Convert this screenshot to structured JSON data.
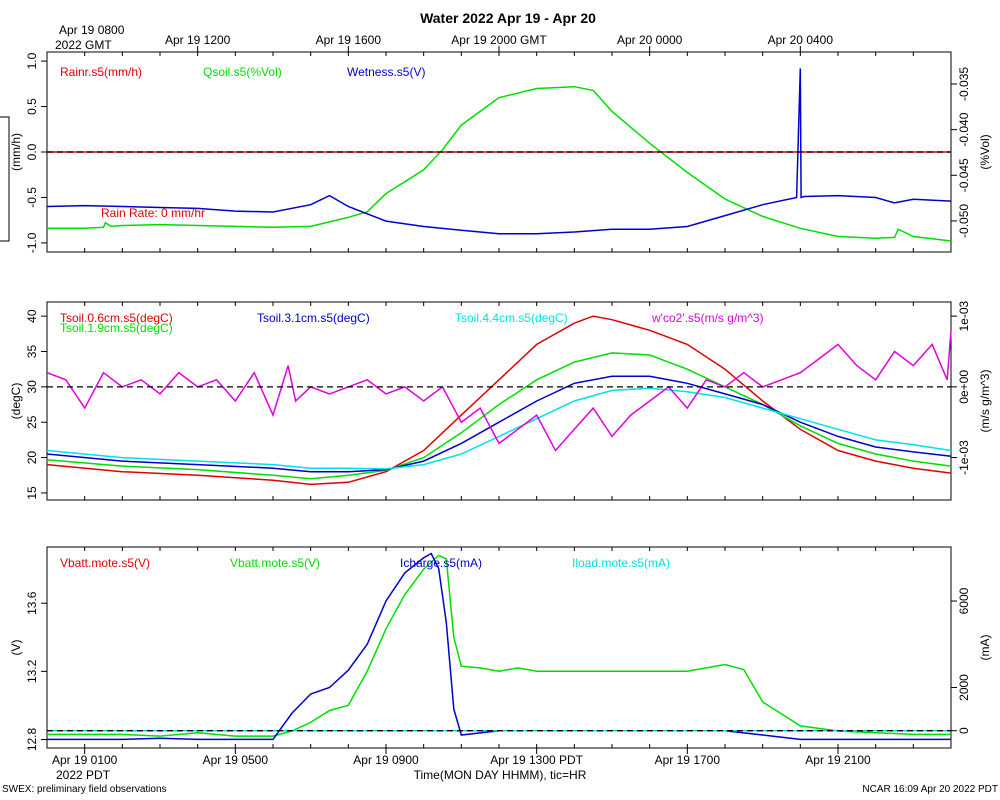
{
  "title": "Water 2022 Apr 19 - Apr 20",
  "top_axis": {
    "tz_line1": "Apr 19 0800",
    "tz_line2": "2022 GMT",
    "ticks": [
      {
        "t": 4,
        "label": "Apr 19 1200"
      },
      {
        "t": 8,
        "label": "Apr 19 1600"
      },
      {
        "t": 12,
        "label": "Apr 19 2000 GMT"
      },
      {
        "t": 16,
        "label": "Apr 20 0000"
      },
      {
        "t": 20,
        "label": "Apr 20 0400"
      }
    ]
  },
  "bottom_axis": {
    "tz_label": "2022 PDT",
    "xlabel": "Time(MON DAY HHMM), tic=HR",
    "ticks": [
      {
        "t": 1,
        "label": "Apr 19 0100"
      },
      {
        "t": 5,
        "label": "Apr 19 0500"
      },
      {
        "t": 9,
        "label": "Apr 19 0900"
      },
      {
        "t": 13,
        "label": "Apr 19 1300 PDT"
      },
      {
        "t": 17,
        "label": "Apr 19 1700"
      },
      {
        "t": 21,
        "label": "Apr 19 2100"
      }
    ]
  },
  "footer_left": "SWEX: preliminary field observations",
  "footer_right": "NCAR 16:09 Apr 20 2022 PDT",
  "chart_data": [
    {
      "type": "line",
      "time_range_hours_pdt": [
        0,
        24
      ],
      "left_axis": {
        "label": "(mm/h)",
        "ylim": [
          -1.1,
          1.1
        ],
        "ticks": [
          1.0,
          0.5,
          0.0,
          -0.5,
          -1.0
        ],
        "tick_labels": [
          "1.0",
          "0.5",
          "0.0",
          "-0.5",
          "-1.0"
        ]
      },
      "right_axis": {
        "label": "(%Vol)",
        "ylim": [
          -0.0534,
          -0.0315
        ],
        "ticks": [
          -0.035,
          -0.04,
          -0.045,
          -0.05
        ],
        "tick_labels": [
          "-0.035",
          "-0.040",
          "-0.045",
          "-0.050"
        ]
      },
      "zero_line": 0.0,
      "annotation": "Rain Rate: 0 mm/hr",
      "series": [
        {
          "name": "Rainr.s5(mm/h)",
          "color": "#e00000",
          "axis": "left",
          "x": [
            0,
            24
          ],
          "y": [
            0,
            0
          ]
        },
        {
          "name": "Qsoil.s5(%Vol)",
          "color": "#00dd00",
          "axis": "right",
          "x": [
            0,
            1,
            1.5,
            1.55,
            1.7,
            2,
            3,
            4,
            5,
            6,
            7,
            7.5,
            8,
            8.5,
            9,
            10,
            10.5,
            11,
            12,
            13,
            14,
            14.5,
            15,
            16,
            17,
            18,
            19,
            20,
            21,
            22,
            22.5,
            22.6,
            23,
            24
          ],
          "y": [
            -0.0508,
            -0.0508,
            -0.0507,
            -0.0502,
            -0.0506,
            -0.0505,
            -0.0504,
            -0.0505,
            -0.0506,
            -0.0507,
            -0.0506,
            -0.0501,
            -0.0496,
            -0.049,
            -0.047,
            -0.0444,
            -0.0422,
            -0.0395,
            -0.0365,
            -0.0355,
            -0.0353,
            -0.0357,
            -0.038,
            -0.0415,
            -0.0447,
            -0.0476,
            -0.0495,
            -0.0508,
            -0.0517,
            -0.0519,
            -0.0518,
            -0.0509,
            -0.0517,
            -0.0522
          ]
        },
        {
          "name": "Wetness.s5(V)",
          "color": "#0000cc",
          "axis": "left",
          "x": [
            0,
            1,
            2,
            3,
            4,
            5,
            6,
            7,
            7.5,
            8,
            9,
            10,
            11,
            12,
            13,
            14,
            15,
            16,
            17,
            18,
            19,
            19.9,
            20.0,
            20.02,
            20.1,
            21,
            22,
            22.5,
            23,
            24
          ],
          "y": [
            -0.6,
            -0.59,
            -0.6,
            -0.61,
            -0.62,
            -0.65,
            -0.66,
            -0.58,
            -0.48,
            -0.6,
            -0.76,
            -0.82,
            -0.86,
            -0.9,
            -0.9,
            -0.88,
            -0.85,
            -0.85,
            -0.82,
            -0.7,
            -0.58,
            -0.5,
            0.92,
            -0.5,
            -0.49,
            -0.48,
            -0.5,
            -0.56,
            -0.52,
            -0.54
          ]
        }
      ]
    },
    {
      "type": "line",
      "time_range_hours_pdt": [
        0,
        24
      ],
      "left_axis": {
        "label": "(degC)",
        "ylim": [
          14,
          42
        ],
        "ticks": [
          40,
          35,
          30,
          25,
          20,
          15
        ],
        "tick_labels": [
          "40",
          "35",
          "30",
          "25",
          "20",
          "15"
        ]
      },
      "right_axis": {
        "label": "(m/s g/m^3)",
        "ylim": [
          -0.0016,
          0.0012
        ],
        "ticks": [
          0.001,
          0,
          -0.001
        ],
        "tick_labels": [
          "1e-03",
          "0e+00",
          "-1e-03"
        ]
      },
      "zero_line": 0.0,
      "series": [
        {
          "name": "Tsoil.0.6cm.s5(degC)",
          "color": "#e00000",
          "axis": "left",
          "x": [
            0,
            2,
            4,
            6,
            7,
            8,
            9,
            10,
            11,
            12,
            13,
            14,
            14.5,
            15,
            16,
            17,
            18,
            19,
            20,
            21,
            22,
            23,
            24
          ],
          "y": [
            19,
            18,
            17.5,
            16.8,
            16.2,
            16.5,
            18,
            21,
            26,
            31,
            36,
            39,
            40,
            39.5,
            38,
            36,
            32.5,
            28,
            24,
            21,
            19.5,
            18.5,
            17.8
          ]
        },
        {
          "name": "Tsoil.1.9cm.s5(degC)",
          "color": "#00dd00",
          "axis": "left",
          "x": [
            0,
            2,
            4,
            6,
            7,
            8,
            9,
            10,
            11,
            12,
            13,
            14,
            15,
            16,
            17,
            18,
            19,
            20,
            21,
            22,
            23,
            24
          ],
          "y": [
            19.7,
            18.8,
            18.3,
            17.5,
            17,
            17.5,
            18.2,
            20,
            23.5,
            27.5,
            31,
            33.5,
            34.8,
            34.5,
            32.5,
            30,
            27.5,
            24.5,
            22,
            20.5,
            19.5,
            18.8
          ]
        },
        {
          "name": "Tsoil.3.1cm.s5(degC)",
          "color": "#0000cc",
          "axis": "left",
          "x": [
            0,
            2,
            4,
            6,
            7,
            8,
            9,
            10,
            11,
            12,
            13,
            14,
            15,
            16,
            17,
            18,
            19,
            20,
            21,
            22,
            23,
            24
          ],
          "y": [
            20.5,
            19.5,
            19,
            18.5,
            18,
            18,
            18.3,
            19.5,
            22,
            25,
            28,
            30.5,
            31.5,
            31.5,
            30.5,
            29,
            27.5,
            25,
            23,
            21.5,
            20.8,
            20.2
          ]
        },
        {
          "name": "Tsoil.4.4cm.s5(degC)",
          "color": "#00e0e8",
          "axis": "left",
          "x": [
            0,
            2,
            4,
            6,
            7,
            8,
            9,
            10,
            11,
            12,
            13,
            14,
            15,
            16,
            17,
            18,
            19,
            20,
            21,
            22,
            23,
            24
          ],
          "y": [
            21,
            20,
            19.5,
            19,
            18.5,
            18.5,
            18.4,
            19,
            20.5,
            23,
            25.5,
            28,
            29.5,
            29.8,
            29.3,
            28.5,
            27,
            25.5,
            24,
            22.5,
            21.8,
            21
          ]
        },
        {
          "name": "w'co2'.s5(m/s g/m^3)",
          "color": "#e000e0",
          "axis": "right",
          "x": [
            0,
            0.5,
            1,
            1.5,
            2,
            2.5,
            3,
            3.5,
            4,
            4.5,
            5,
            5.5,
            6,
            6.4,
            6.6,
            7,
            7.5,
            8,
            8.5,
            9,
            9.5,
            10,
            10.5,
            11,
            11.5,
            12,
            12.5,
            13,
            13.5,
            14,
            14.5,
            15,
            15.5,
            16,
            16.5,
            17,
            17.5,
            18,
            18.5,
            19,
            19.5,
            20,
            20.5,
            21,
            21.5,
            22,
            22.5,
            23,
            23.5,
            23.9,
            24
          ],
          "y": [
            0.0002,
            0.0001,
            -0.0003,
            0.0002,
            0.0,
            0.0001,
            -0.0001,
            0.0002,
            0.0,
            0.0001,
            -0.0002,
            0.0002,
            -0.0004,
            0.0003,
            -0.0002,
            0.0,
            -0.0001,
            0.0,
            0.0001,
            -0.0001,
            0.0,
            -0.0002,
            0.0,
            -0.0005,
            -0.0003,
            -0.0008,
            -0.0006,
            -0.0004,
            -0.0009,
            -0.0006,
            -0.0003,
            -0.0007,
            -0.0004,
            -0.0002,
            0.0,
            -0.0003,
            0.0001,
            0.0,
            0.0002,
            0.0,
            0.0001,
            0.0002,
            0.0004,
            0.0006,
            0.0003,
            0.0001,
            0.0005,
            0.0003,
            0.0006,
            0.0001,
            0.0008
          ]
        }
      ]
    },
    {
      "type": "line",
      "time_range_hours_pdt": [
        0,
        24
      ],
      "left_axis": {
        "label": "(V)",
        "ylim": [
          12.75,
          13.93
        ],
        "ticks": [
          13.6,
          13.2,
          12.8
        ],
        "tick_labels": [
          "13.6",
          "13.2",
          "12.8"
        ]
      },
      "right_axis": {
        "label": "(mA)",
        "ylim": [
          -800,
          8500
        ],
        "ticks": [
          6000,
          2000,
          0
        ],
        "tick_labels": [
          "6000",
          "2000",
          "0"
        ]
      },
      "zero_line": 0,
      "series": [
        {
          "name": "Vbatt.mote.s5(V)",
          "color": "#e00000",
          "axis": "left",
          "x": [],
          "y": []
        },
        {
          "name": "Vbatt.mote.s5(V)",
          "color": "#00dd00",
          "axis": "left",
          "x": [
            0,
            1,
            2,
            3,
            4,
            5,
            6,
            6.5,
            7,
            7.5,
            8,
            8.5,
            9,
            9.5,
            10,
            10.4,
            10.6,
            10.8,
            11,
            11.5,
            12,
            12.5,
            13,
            14,
            15,
            16,
            17,
            18,
            18.5,
            19,
            19.5,
            20,
            21,
            22,
            23,
            24
          ],
          "y": [
            12.83,
            12.83,
            12.83,
            12.82,
            12.84,
            12.82,
            12.82,
            12.85,
            12.9,
            12.97,
            13.0,
            13.2,
            13.45,
            13.65,
            13.8,
            13.88,
            13.86,
            13.4,
            13.23,
            13.22,
            13.2,
            13.22,
            13.2,
            13.2,
            13.2,
            13.2,
            13.2,
            13.24,
            13.21,
            13.02,
            12.95,
            12.88,
            12.85,
            12.84,
            12.83,
            12.83
          ]
        },
        {
          "name": "Icharge.s5(mA)",
          "color": "#0000cc",
          "axis": "right",
          "x": [
            0,
            1,
            2,
            3,
            4,
            5,
            6,
            6.5,
            7,
            7.5,
            8,
            8.5,
            9,
            9.5,
            10,
            10.2,
            10.4,
            10.6,
            10.8,
            11,
            12,
            13,
            14,
            15,
            16,
            17,
            18,
            18.5,
            19,
            20,
            21,
            22,
            23,
            24
          ],
          "y": [
            -400,
            -400,
            -400,
            -350,
            -400,
            -400,
            -400,
            800,
            1700,
            2000,
            2800,
            4000,
            6000,
            7300,
            8000,
            8200,
            7500,
            5000,
            1000,
            -200,
            0,
            0,
            0,
            0,
            0,
            0,
            0,
            -100,
            -200,
            -400,
            -400,
            -400,
            -400,
            -400
          ]
        },
        {
          "name": "Iload.mote.s5(mA)",
          "color": "#00e0e8",
          "axis": "right",
          "x": [
            0,
            24
          ],
          "y": [
            0,
            0
          ]
        }
      ]
    }
  ]
}
